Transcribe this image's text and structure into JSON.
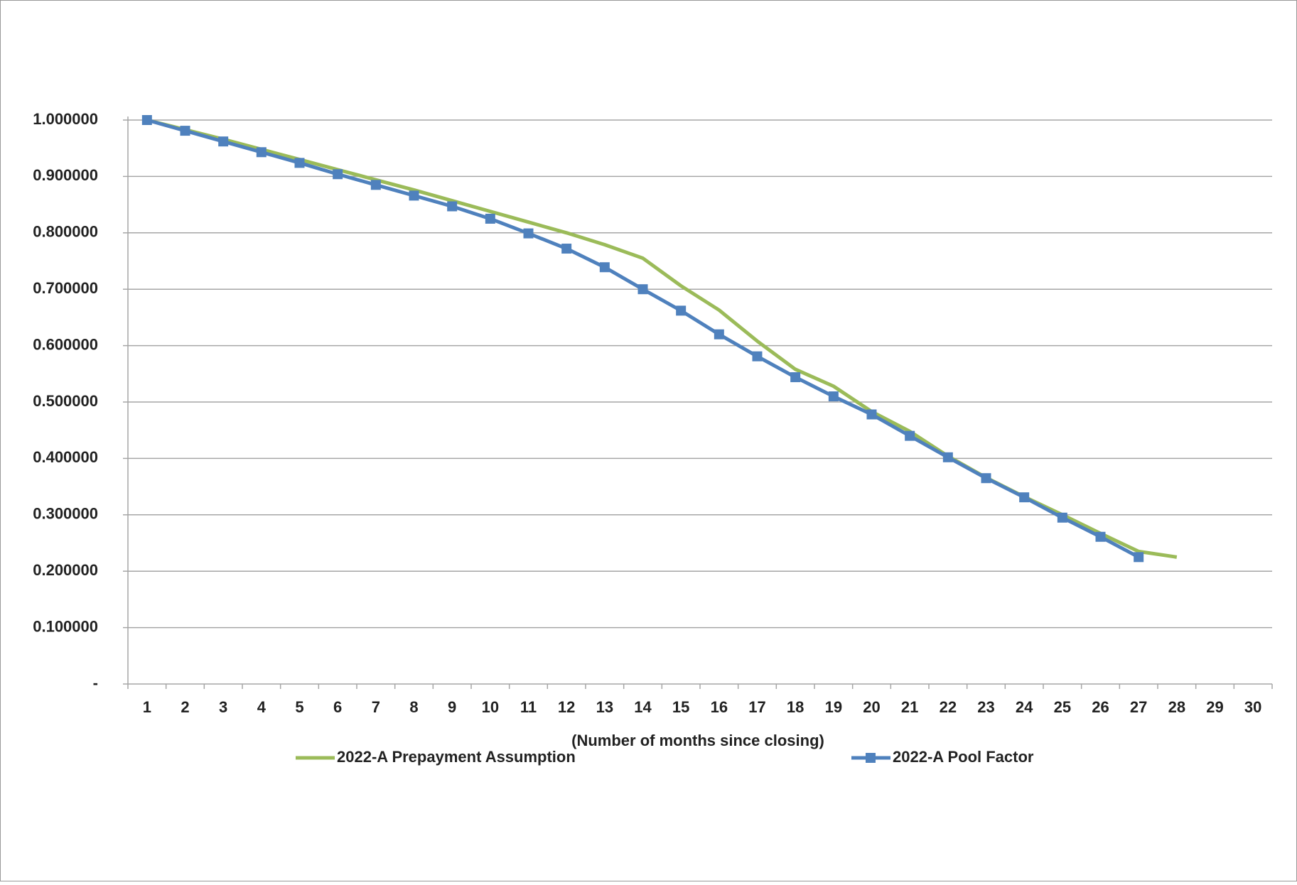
{
  "chart_data": {
    "type": "line",
    "xlabel": "(Number of months since closing)",
    "categories": [
      "1",
      "2",
      "3",
      "4",
      "5",
      "6",
      "7",
      "8",
      "9",
      "10",
      "11",
      "12",
      "13",
      "14",
      "15",
      "16",
      "17",
      "18",
      "19",
      "20",
      "21",
      "22",
      "23",
      "24",
      "25",
      "26",
      "27",
      "28",
      "29",
      "30"
    ],
    "series": [
      {
        "name": "2022-A Prepayment Assumption",
        "color": "#9bbb59",
        "marker": "none",
        "values": [
          1.0,
          0.983,
          0.966,
          0.948,
          0.93,
          0.912,
          0.894,
          0.876,
          0.857,
          0.838,
          0.819,
          0.8,
          0.779,
          0.755,
          0.706,
          0.663,
          0.608,
          0.558,
          0.528,
          0.483,
          0.448,
          0.404,
          0.366,
          0.332,
          0.3,
          0.267,
          0.235,
          0.225,
          null,
          null
        ]
      },
      {
        "name": "2022-A Pool Factor",
        "color": "#4f81bd",
        "marker": "square",
        "values": [
          1.0,
          0.981,
          0.962,
          0.943,
          0.924,
          0.904,
          0.885,
          0.866,
          0.847,
          0.825,
          0.799,
          0.772,
          0.739,
          0.7,
          0.662,
          0.62,
          0.581,
          0.544,
          0.51,
          0.478,
          0.44,
          0.402,
          0.365,
          0.331,
          0.295,
          0.261,
          0.225,
          null,
          null,
          null
        ]
      }
    ],
    "ylim": [
      0,
      1
    ],
    "yticks": [
      {
        "value": 0,
        "label": "-"
      },
      {
        "value": 0.1,
        "label": "0.100000"
      },
      {
        "value": 0.2,
        "label": "0.200000"
      },
      {
        "value": 0.3,
        "label": "0.300000"
      },
      {
        "value": 0.4,
        "label": "0.400000"
      },
      {
        "value": 0.5,
        "label": "0.500000"
      },
      {
        "value": 0.6,
        "label": "0.600000"
      },
      {
        "value": 0.7,
        "label": "0.700000"
      },
      {
        "value": 0.8,
        "label": "0.800000"
      },
      {
        "value": 0.9,
        "label": "0.900000"
      },
      {
        "value": 1,
        "label": "1.000000"
      }
    ],
    "grid": true,
    "legend": "bottom"
  }
}
